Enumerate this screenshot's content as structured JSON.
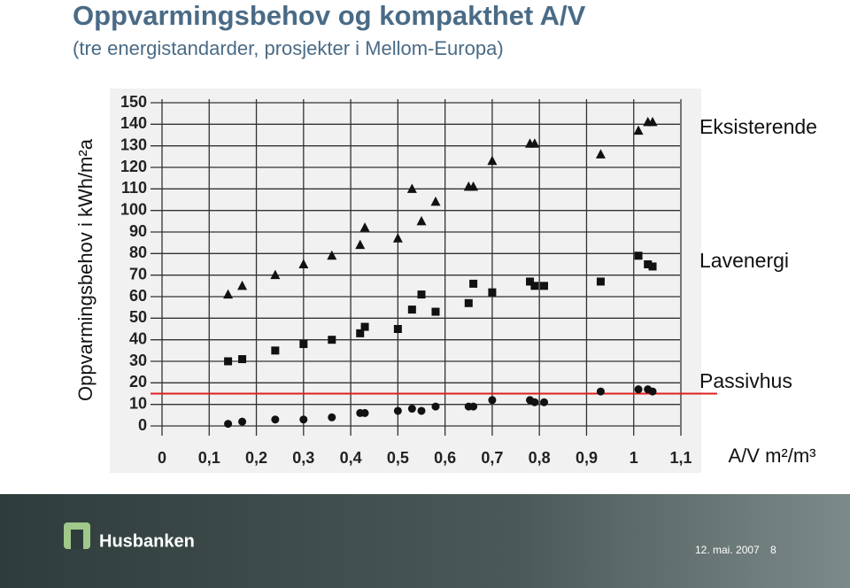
{
  "chart_data": {
    "type": "scatter",
    "title": "Oppvarmingsbehov og kompakthet A/V",
    "subtitle": "(tre energistandarder, prosjekter i Mellom-Europa)",
    "y_label": "Oppvarmingsbehov i kWh/m²a",
    "x_label": "A/V m²/m³",
    "xlim": [
      0,
      1.1
    ],
    "ylim": [
      0,
      150
    ],
    "xticks": [
      0,
      {
        "value": 0.1,
        "label": "0,1"
      },
      {
        "value": 0.2,
        "label": "0,2"
      },
      {
        "value": 0.3,
        "label": "0,3"
      },
      {
        "value": 0.4,
        "label": "0,4"
      },
      {
        "value": 0.5,
        "label": "0,5"
      },
      {
        "value": 0.6,
        "label": "0,6"
      },
      {
        "value": 0.7,
        "label": "0,7"
      },
      {
        "value": 0.8,
        "label": "0,8"
      },
      {
        "value": 0.9,
        "label": "0,9"
      },
      1,
      {
        "value": 1.1,
        "label": "1,1"
      }
    ],
    "yticks": [
      0,
      10,
      20,
      30,
      40,
      50,
      60,
      70,
      80,
      90,
      100,
      110,
      120,
      130,
      140,
      150
    ],
    "grid": true,
    "reference_line": {
      "value": 15,
      "color": "#e02020"
    },
    "series": [
      {
        "name": "Eksisterende",
        "color": "#111111",
        "marker": "triangle",
        "x": [
          0.14,
          0.17,
          0.24,
          0.3,
          0.36,
          0.42,
          0.43,
          0.5,
          0.53,
          0.55,
          0.58,
          0.65,
          0.66,
          0.7,
          0.78,
          0.79,
          0.93,
          1.01,
          1.03,
          1.04
        ],
        "values": [
          61,
          65,
          70,
          75,
          79,
          84,
          92,
          87,
          110,
          95,
          104,
          111,
          111,
          123,
          131,
          131,
          126,
          137,
          141,
          141
        ]
      },
      {
        "name": "Lavenergi",
        "color": "#111111",
        "marker": "square",
        "x": [
          0.14,
          0.17,
          0.24,
          0.3,
          0.36,
          0.42,
          0.43,
          0.5,
          0.53,
          0.55,
          0.58,
          0.65,
          0.66,
          0.7,
          0.78,
          0.79,
          0.81,
          0.93,
          1.01,
          1.03,
          1.04
        ],
        "values": [
          30,
          31,
          35,
          38,
          40,
          43,
          46,
          45,
          54,
          61,
          53,
          57,
          66,
          62,
          67,
          65,
          65,
          67,
          79,
          75,
          74
        ]
      },
      {
        "name": "Passivhus",
        "color": "#111111",
        "marker": "circle",
        "x": [
          0.14,
          0.17,
          0.24,
          0.3,
          0.36,
          0.42,
          0.43,
          0.5,
          0.53,
          0.55,
          0.58,
          0.65,
          0.66,
          0.7,
          0.78,
          0.79,
          0.81,
          0.93,
          1.01,
          1.03,
          1.04
        ],
        "values": [
          1,
          2,
          3,
          3,
          4,
          6,
          6,
          7,
          8,
          7,
          9,
          9,
          9,
          12,
          12,
          11,
          11,
          16,
          17,
          17,
          16
        ]
      }
    ]
  },
  "footer": {
    "logo": "Husbanken",
    "date": "12. mai. 2007",
    "page": "8"
  }
}
